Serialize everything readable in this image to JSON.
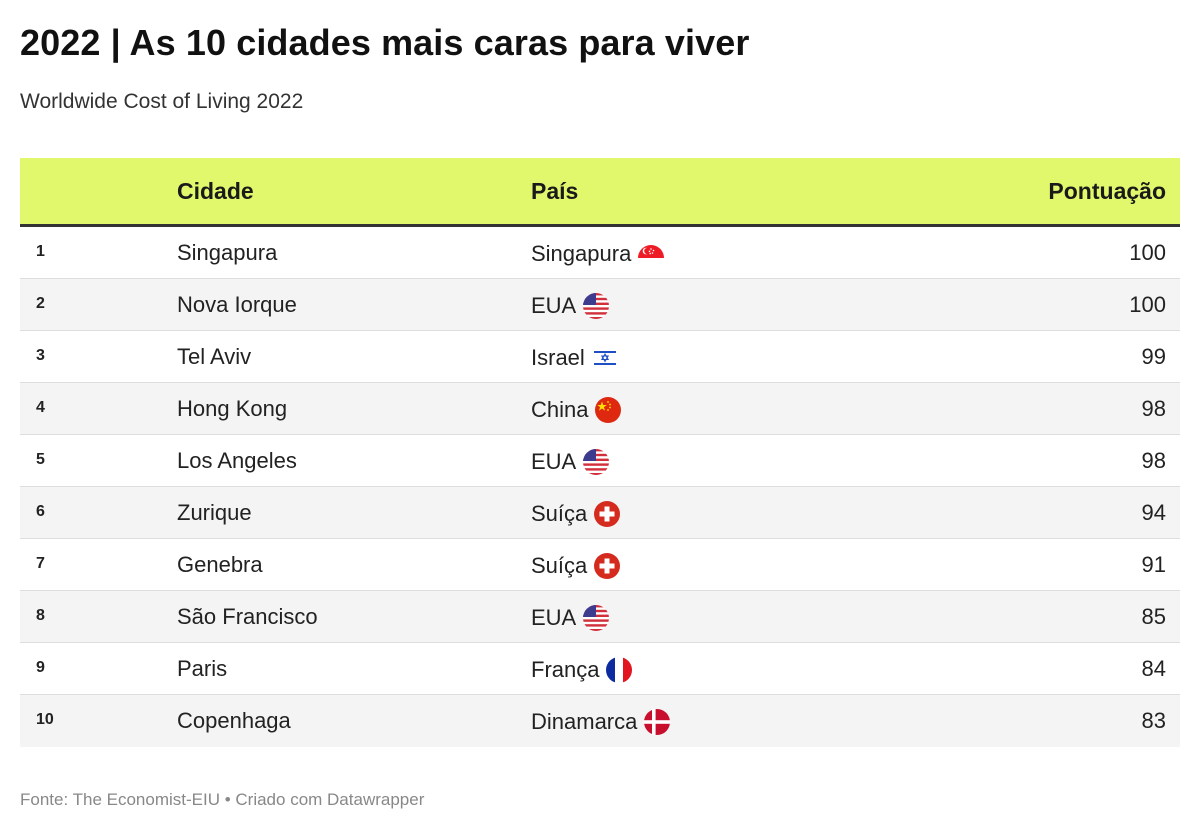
{
  "title": "2022 | As 10 cidades mais caras para viver",
  "subtitle": "Worldwide Cost of Living 2022",
  "headers": {
    "rank": "",
    "city": "Cidade",
    "country": "País",
    "score": "Pontuação"
  },
  "accent_color": "#e1f76c",
  "rows": [
    {
      "rank": "1",
      "city": "Singapura",
      "country": "Singapura",
      "flag": "singapore-flag-icon",
      "score": "100"
    },
    {
      "rank": "2",
      "city": "Nova Iorque",
      "country": "EUA",
      "flag": "usa-flag-icon",
      "score": "100"
    },
    {
      "rank": "3",
      "city": "Tel Aviv",
      "country": "Israel",
      "flag": "israel-flag-icon",
      "score": "99"
    },
    {
      "rank": "4",
      "city": "Hong Kong",
      "country": "China",
      "flag": "china-flag-icon",
      "score": "98"
    },
    {
      "rank": "5",
      "city": "Los Angeles",
      "country": "EUA",
      "flag": "usa-flag-icon",
      "score": "98"
    },
    {
      "rank": "6",
      "city": "Zurique",
      "country": "Suíça",
      "flag": "switzerland-flag-icon",
      "score": "94"
    },
    {
      "rank": "7",
      "city": "Genebra",
      "country": "Suíça",
      "flag": "switzerland-flag-icon",
      "score": "91"
    },
    {
      "rank": "8",
      "city": "São Francisco",
      "country": "EUA",
      "flag": "usa-flag-icon",
      "score": "85"
    },
    {
      "rank": "9",
      "city": "Paris",
      "country": "França",
      "flag": "france-flag-icon",
      "score": "84"
    },
    {
      "rank": "10",
      "city": "Copenhaga",
      "country": "Dinamarca",
      "flag": "denmark-flag-icon",
      "score": "83"
    }
  ],
  "footer": "Fonte: The Economist-EIU • Criado com Datawrapper"
}
